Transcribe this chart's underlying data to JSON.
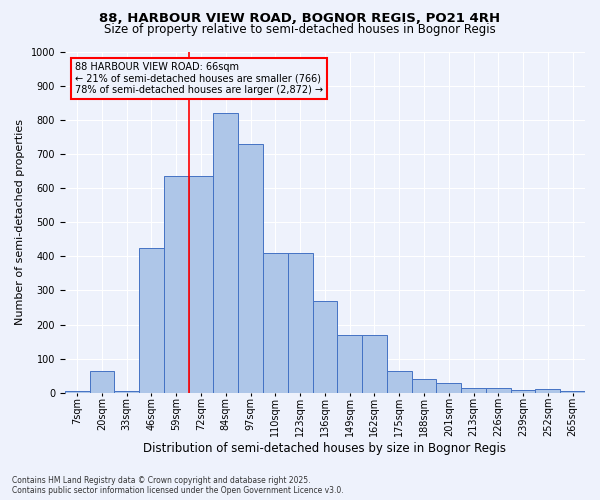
{
  "title": "88, HARBOUR VIEW ROAD, BOGNOR REGIS, PO21 4RH",
  "subtitle": "Size of property relative to semi-detached houses in Bognor Regis",
  "xlabel": "Distribution of semi-detached houses by size in Bognor Regis",
  "ylabel": "Number of semi-detached properties",
  "bin_labels": [
    "7sqm",
    "20sqm",
    "33sqm",
    "46sqm",
    "59sqm",
    "72sqm",
    "84sqm",
    "97sqm",
    "110sqm",
    "123sqm",
    "136sqm",
    "149sqm",
    "162sqm",
    "175sqm",
    "188sqm",
    "201sqm",
    "213sqm",
    "226sqm",
    "239sqm",
    "252sqm",
    "265sqm"
  ],
  "bar_values": [
    5,
    65,
    5,
    425,
    635,
    635,
    820,
    730,
    410,
    410,
    270,
    170,
    170,
    65,
    40,
    30,
    15,
    15,
    8,
    10,
    5
  ],
  "bar_color": "#aec6e8",
  "bar_edge_color": "#4472c4",
  "subject_line_color": "red",
  "subject_line_index": 4.5,
  "annotation_text": "88 HARBOUR VIEW ROAD: 66sqm\n← 21% of semi-detached houses are smaller (766)\n78% of semi-detached houses are larger (2,872) →",
  "annotation_box_color": "red",
  "background_color": "#eef2fc",
  "grid_color": "#ffffff",
  "footer_text": "Contains HM Land Registry data © Crown copyright and database right 2025.\nContains public sector information licensed under the Open Government Licence v3.0.",
  "ylim": [
    0,
    1000
  ],
  "yticks": [
    0,
    100,
    200,
    300,
    400,
    500,
    600,
    700,
    800,
    900,
    1000
  ],
  "title_fontsize": 9.5,
  "subtitle_fontsize": 8.5,
  "ylabel_fontsize": 8,
  "xlabel_fontsize": 8.5,
  "tick_fontsize": 7,
  "footer_fontsize": 5.5,
  "annotation_fontsize": 7
}
